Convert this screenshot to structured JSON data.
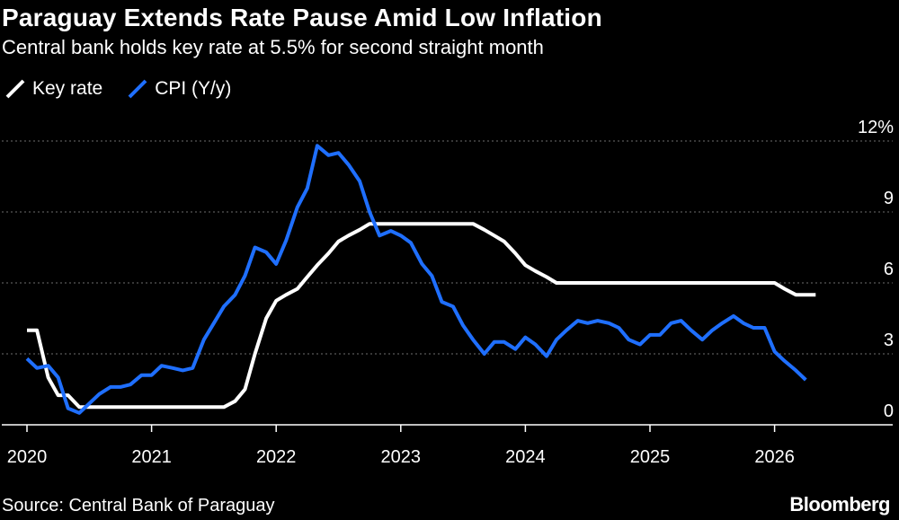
{
  "header": {
    "title": "Paraguay Extends Rate Pause Amid Low Inflation",
    "subtitle": "Central bank holds key rate at 5.5% for second straight month"
  },
  "legend": {
    "items": [
      {
        "label": "Key rate",
        "color": "#ffffff",
        "icon": "slash-line-icon"
      },
      {
        "label": "CPI (Y/y)",
        "color": "#1f6fff",
        "icon": "slash-line-icon"
      }
    ]
  },
  "footer": {
    "source": "Source: Central Bank of Paraguay",
    "brand": "Bloomberg"
  },
  "chart_data": {
    "type": "line",
    "title": "Paraguay Extends Rate Pause Amid Low Inflation",
    "subtitle": "Central bank holds key rate at 5.5% for second straight month",
    "xlabel": "",
    "ylabel": "",
    "ylim": [
      0,
      12
    ],
    "yticks": [
      0,
      3,
      6,
      9,
      12
    ],
    "ytick_labels": [
      "0",
      "3",
      "6",
      "9",
      "12%"
    ],
    "xticks": [
      2020,
      2021,
      2022,
      2023,
      2024,
      2025,
      2026
    ],
    "xtick_labels": [
      "2020",
      "2021",
      "2022",
      "2023",
      "2024",
      "2025",
      "2026"
    ],
    "xlim": [
      2019.9,
      2026.85
    ],
    "grid": true,
    "legend_position": "top-left",
    "series": [
      {
        "name": "Key rate",
        "color": "#ffffff",
        "points": [
          [
            2020.0,
            4.0
          ],
          [
            2020.08,
            4.0
          ],
          [
            2020.17,
            2.0
          ],
          [
            2020.25,
            1.25
          ],
          [
            2020.33,
            1.25
          ],
          [
            2020.42,
            0.75
          ],
          [
            2020.5,
            0.75
          ],
          [
            2020.58,
            0.75
          ],
          [
            2021.0,
            0.75
          ],
          [
            2021.5,
            0.75
          ],
          [
            2021.58,
            0.75
          ],
          [
            2021.67,
            1.0
          ],
          [
            2021.75,
            1.5
          ],
          [
            2021.83,
            3.0
          ],
          [
            2021.92,
            4.5
          ],
          [
            2022.0,
            5.25
          ],
          [
            2022.08,
            5.5
          ],
          [
            2022.17,
            5.75
          ],
          [
            2022.25,
            6.25
          ],
          [
            2022.33,
            6.75
          ],
          [
            2022.42,
            7.25
          ],
          [
            2022.5,
            7.75
          ],
          [
            2022.58,
            8.0
          ],
          [
            2022.67,
            8.25
          ],
          [
            2022.75,
            8.5
          ],
          [
            2023.0,
            8.5
          ],
          [
            2023.5,
            8.5
          ],
          [
            2023.58,
            8.5
          ],
          [
            2023.67,
            8.25
          ],
          [
            2023.75,
            8.0
          ],
          [
            2023.83,
            7.75
          ],
          [
            2023.92,
            7.25
          ],
          [
            2024.0,
            6.75
          ],
          [
            2024.08,
            6.5
          ],
          [
            2024.17,
            6.25
          ],
          [
            2024.25,
            6.0
          ],
          [
            2024.5,
            6.0
          ],
          [
            2025.0,
            6.0
          ],
          [
            2025.5,
            6.0
          ],
          [
            2025.83,
            6.0
          ],
          [
            2026.0,
            6.0
          ],
          [
            2026.08,
            5.75
          ],
          [
            2026.17,
            5.5
          ],
          [
            2026.33,
            5.5
          ]
        ]
      },
      {
        "name": "CPI (Y/y)",
        "color": "#1f6fff",
        "points": [
          [
            2020.0,
            2.8
          ],
          [
            2020.08,
            2.4
          ],
          [
            2020.17,
            2.5
          ],
          [
            2020.25,
            2.0
          ],
          [
            2020.33,
            0.7
          ],
          [
            2020.42,
            0.5
          ],
          [
            2020.5,
            0.9
          ],
          [
            2020.58,
            1.3
          ],
          [
            2020.67,
            1.6
          ],
          [
            2020.75,
            1.6
          ],
          [
            2020.83,
            1.7
          ],
          [
            2020.92,
            2.1
          ],
          [
            2021.0,
            2.1
          ],
          [
            2021.08,
            2.5
          ],
          [
            2021.17,
            2.4
          ],
          [
            2021.25,
            2.3
          ],
          [
            2021.33,
            2.4
          ],
          [
            2021.42,
            3.6
          ],
          [
            2021.5,
            4.3
          ],
          [
            2021.58,
            5.0
          ],
          [
            2021.67,
            5.5
          ],
          [
            2021.75,
            6.3
          ],
          [
            2021.83,
            7.5
          ],
          [
            2021.92,
            7.3
          ],
          [
            2022.0,
            6.8
          ],
          [
            2022.08,
            7.8
          ],
          [
            2022.17,
            9.2
          ],
          [
            2022.25,
            10.0
          ],
          [
            2022.33,
            11.8
          ],
          [
            2022.42,
            11.4
          ],
          [
            2022.5,
            11.5
          ],
          [
            2022.58,
            11.0
          ],
          [
            2022.67,
            10.3
          ],
          [
            2022.75,
            9.0
          ],
          [
            2022.83,
            8.0
          ],
          [
            2022.92,
            8.2
          ],
          [
            2023.0,
            8.0
          ],
          [
            2023.08,
            7.7
          ],
          [
            2023.17,
            6.8
          ],
          [
            2023.25,
            6.3
          ],
          [
            2023.33,
            5.2
          ],
          [
            2023.42,
            5.0
          ],
          [
            2023.5,
            4.2
          ],
          [
            2023.58,
            3.6
          ],
          [
            2023.67,
            3.0
          ],
          [
            2023.75,
            3.5
          ],
          [
            2023.83,
            3.5
          ],
          [
            2023.92,
            3.2
          ],
          [
            2024.0,
            3.7
          ],
          [
            2024.08,
            3.4
          ],
          [
            2024.17,
            2.9
          ],
          [
            2024.25,
            3.6
          ],
          [
            2024.33,
            4.0
          ],
          [
            2024.42,
            4.4
          ],
          [
            2024.5,
            4.3
          ],
          [
            2024.58,
            4.4
          ],
          [
            2024.67,
            4.3
          ],
          [
            2024.75,
            4.1
          ],
          [
            2024.83,
            3.6
          ],
          [
            2024.92,
            3.4
          ],
          [
            2025.0,
            3.8
          ],
          [
            2025.08,
            3.8
          ],
          [
            2025.17,
            4.3
          ],
          [
            2025.25,
            4.4
          ],
          [
            2025.33,
            4.0
          ],
          [
            2025.42,
            3.6
          ],
          [
            2025.5,
            4.0
          ],
          [
            2025.58,
            4.3
          ],
          [
            2025.67,
            4.6
          ],
          [
            2025.75,
            4.3
          ],
          [
            2025.83,
            4.1
          ],
          [
            2025.92,
            4.1
          ],
          [
            2026.0,
            3.1
          ],
          [
            2026.08,
            2.7
          ],
          [
            2026.17,
            2.3
          ],
          [
            2026.25,
            1.9
          ]
        ]
      }
    ]
  }
}
